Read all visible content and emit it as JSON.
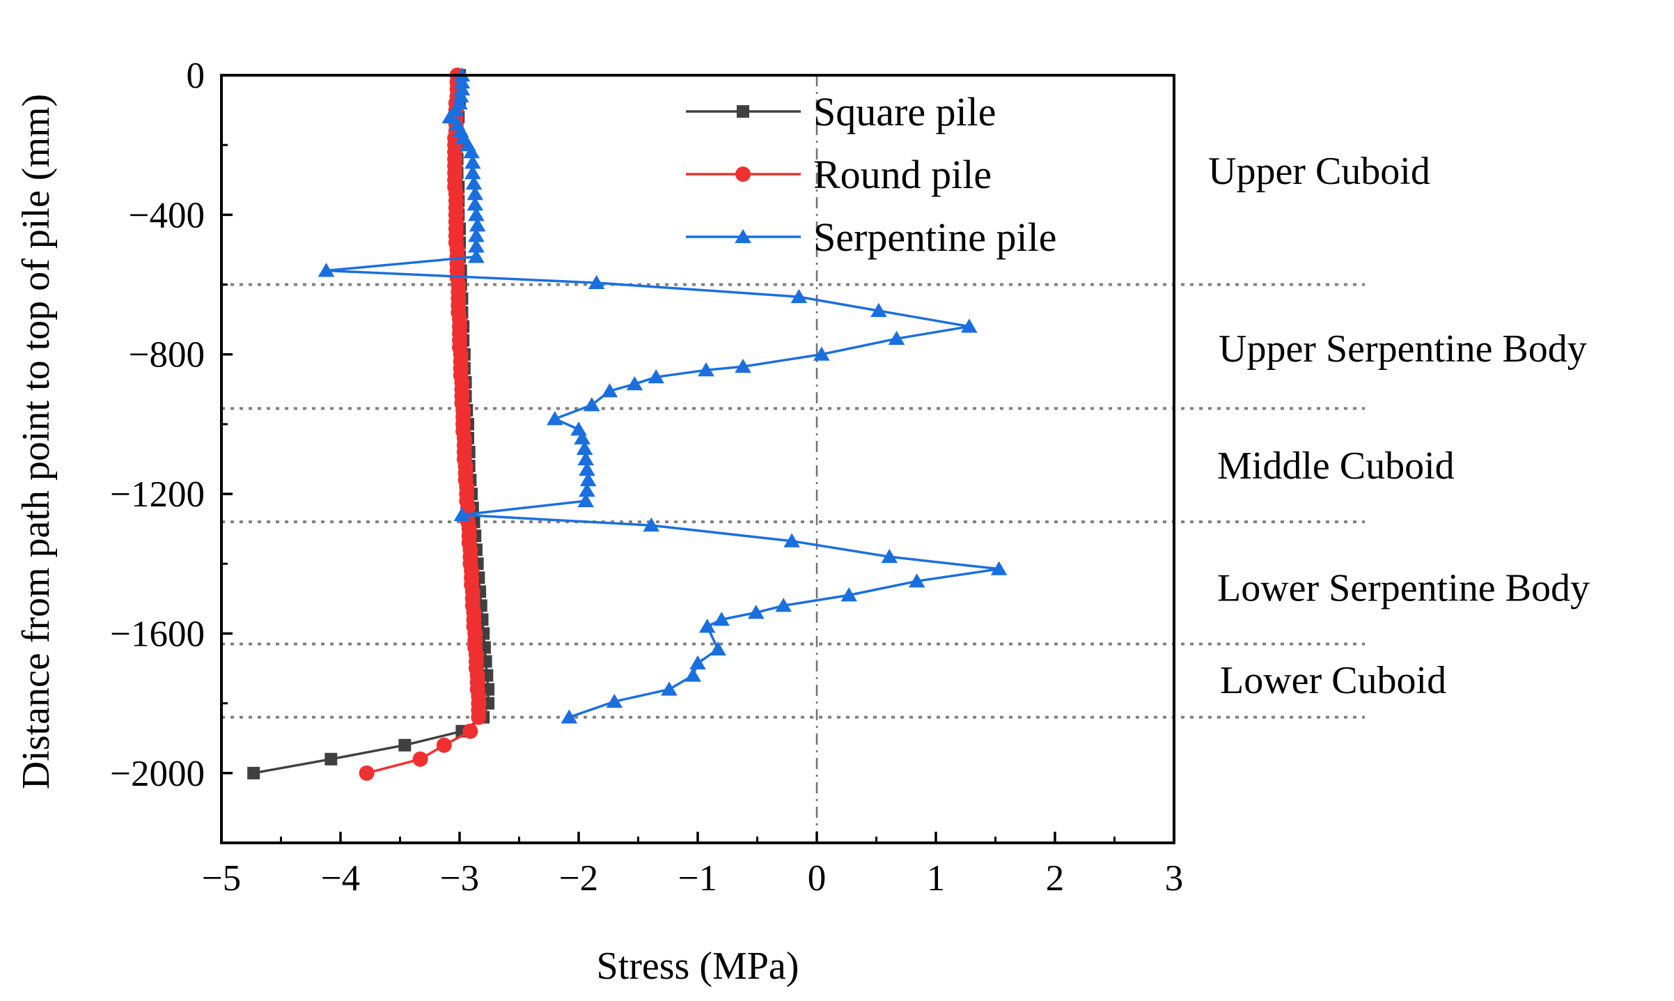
{
  "chart_data": {
    "type": "line",
    "title": "",
    "xlabel": "Stress (MPa)",
    "ylabel": "Distance from path point to top of pile (mm)",
    "xlim": [
      -5,
      3
    ],
    "ylim": [
      -2200,
      0
    ],
    "xticks": [
      -5,
      -4,
      -3,
      -2,
      -1,
      0,
      1,
      2,
      3
    ],
    "yticks": [
      0,
      -400,
      -800,
      -1200,
      -1600,
      -2000
    ],
    "xtick_labels": [
      "−5",
      "−4",
      "−3",
      "−2",
      "−1",
      "0",
      "1",
      "2",
      "3"
    ],
    "ytick_labels": [
      "0",
      "−400",
      "−800",
      "−1200",
      "−1600",
      "−2000"
    ],
    "grid": false,
    "legend_position": "top-center",
    "zero_line": {
      "x": 0,
      "style": "dash-dot"
    },
    "boundaries": [
      -600,
      -955,
      -1280,
      -1630,
      -1840
    ],
    "regions": [
      {
        "label": "Upper Cuboid",
        "y": -275
      },
      {
        "label": "Upper Serpentine Body",
        "y": -785
      },
      {
        "label": "Middle Cuboid",
        "y": -1120
      },
      {
        "label": "Lower Serpentine Body",
        "y": -1470
      },
      {
        "label": "Lower Cuboid",
        "y": -1735
      }
    ],
    "series": [
      {
        "name": "Square pile",
        "color": "#404040",
        "marker": "square",
        "points": [
          [
            -3.0,
            0
          ],
          [
            -3.0,
            -40
          ],
          [
            -3.0,
            -80
          ],
          [
            -3.01,
            -120
          ],
          [
            -3.02,
            -160
          ],
          [
            -3.02,
            -200
          ],
          [
            -3.02,
            -240
          ],
          [
            -3.02,
            -280
          ],
          [
            -3.01,
            -320
          ],
          [
            -3.01,
            -360
          ],
          [
            -3.01,
            -400
          ],
          [
            -3.0,
            -440
          ],
          [
            -3.0,
            -480
          ],
          [
            -3.0,
            -520
          ],
          [
            -2.99,
            -560
          ],
          [
            -2.99,
            -600
          ],
          [
            -2.98,
            -640
          ],
          [
            -2.98,
            -680
          ],
          [
            -2.97,
            -720
          ],
          [
            -2.97,
            -760
          ],
          [
            -2.96,
            -800
          ],
          [
            -2.96,
            -840
          ],
          [
            -2.95,
            -880
          ],
          [
            -2.95,
            -920
          ],
          [
            -2.94,
            -960
          ],
          [
            -2.93,
            -1000
          ],
          [
            -2.93,
            -1040
          ],
          [
            -2.92,
            -1080
          ],
          [
            -2.92,
            -1120
          ],
          [
            -2.91,
            -1160
          ],
          [
            -2.9,
            -1200
          ],
          [
            -2.89,
            -1240
          ],
          [
            -2.88,
            -1280
          ],
          [
            -2.87,
            -1320
          ],
          [
            -2.86,
            -1360
          ],
          [
            -2.85,
            -1400
          ],
          [
            -2.84,
            -1440
          ],
          [
            -2.83,
            -1480
          ],
          [
            -2.82,
            -1520
          ],
          [
            -2.81,
            -1560
          ],
          [
            -2.8,
            -1600
          ],
          [
            -2.79,
            -1640
          ],
          [
            -2.78,
            -1680
          ],
          [
            -2.77,
            -1720
          ],
          [
            -2.76,
            -1760
          ],
          [
            -2.76,
            -1800
          ],
          [
            -2.8,
            -1840
          ],
          [
            -2.98,
            -1880
          ],
          [
            -3.46,
            -1920
          ],
          [
            -4.08,
            -1960
          ],
          [
            -4.73,
            -2000
          ]
        ]
      },
      {
        "name": "Round pile",
        "color": "#f03030",
        "marker": "circle",
        "points": [
          [
            -3.02,
            0
          ],
          [
            -3.02,
            -20
          ],
          [
            -3.02,
            -40
          ],
          [
            -3.02,
            -60
          ],
          [
            -3.03,
            -80
          ],
          [
            -3.03,
            -100
          ],
          [
            -3.03,
            -120
          ],
          [
            -3.03,
            -140
          ],
          [
            -3.03,
            -160
          ],
          [
            -3.04,
            -180
          ],
          [
            -3.04,
            -200
          ],
          [
            -3.04,
            -220
          ],
          [
            -3.04,
            -240
          ],
          [
            -3.04,
            -260
          ],
          [
            -3.04,
            -280
          ],
          [
            -3.04,
            -300
          ],
          [
            -3.04,
            -320
          ],
          [
            -3.03,
            -340
          ],
          [
            -3.03,
            -360
          ],
          [
            -3.03,
            -380
          ],
          [
            -3.03,
            -400
          ],
          [
            -3.03,
            -420
          ],
          [
            -3.03,
            -440
          ],
          [
            -3.03,
            -460
          ],
          [
            -3.03,
            -480
          ],
          [
            -3.02,
            -500
          ],
          [
            -3.02,
            -520
          ],
          [
            -3.02,
            -540
          ],
          [
            -3.02,
            -560
          ],
          [
            -3.02,
            -580
          ],
          [
            -3.01,
            -600
          ],
          [
            -3.01,
            -620
          ],
          [
            -3.01,
            -640
          ],
          [
            -3.01,
            -660
          ],
          [
            -3.01,
            -680
          ],
          [
            -3.0,
            -700
          ],
          [
            -3.0,
            -720
          ],
          [
            -3.0,
            -740
          ],
          [
            -3.0,
            -760
          ],
          [
            -3.0,
            -780
          ],
          [
            -2.99,
            -800
          ],
          [
            -2.99,
            -820
          ],
          [
            -2.99,
            -840
          ],
          [
            -2.99,
            -860
          ],
          [
            -2.98,
            -880
          ],
          [
            -2.98,
            -900
          ],
          [
            -2.98,
            -920
          ],
          [
            -2.98,
            -940
          ],
          [
            -2.97,
            -960
          ],
          [
            -2.97,
            -980
          ],
          [
            -2.97,
            -1000
          ],
          [
            -2.97,
            -1020
          ],
          [
            -2.96,
            -1040
          ],
          [
            -2.96,
            -1060
          ],
          [
            -2.96,
            -1080
          ],
          [
            -2.96,
            -1100
          ],
          [
            -2.95,
            -1120
          ],
          [
            -2.95,
            -1140
          ],
          [
            -2.95,
            -1160
          ],
          [
            -2.94,
            -1180
          ],
          [
            -2.94,
            -1200
          ],
          [
            -2.94,
            -1220
          ],
          [
            -2.93,
            -1240
          ],
          [
            -2.93,
            -1260
          ],
          [
            -2.93,
            -1280
          ],
          [
            -2.92,
            -1300
          ],
          [
            -2.92,
            -1320
          ],
          [
            -2.92,
            -1340
          ],
          [
            -2.91,
            -1360
          ],
          [
            -2.91,
            -1380
          ],
          [
            -2.91,
            -1400
          ],
          [
            -2.9,
            -1420
          ],
          [
            -2.9,
            -1440
          ],
          [
            -2.9,
            -1460
          ],
          [
            -2.89,
            -1480
          ],
          [
            -2.89,
            -1500
          ],
          [
            -2.89,
            -1520
          ],
          [
            -2.88,
            -1540
          ],
          [
            -2.88,
            -1560
          ],
          [
            -2.88,
            -1580
          ],
          [
            -2.87,
            -1600
          ],
          [
            -2.87,
            -1620
          ],
          [
            -2.87,
            -1640
          ],
          [
            -2.86,
            -1660
          ],
          [
            -2.86,
            -1680
          ],
          [
            -2.86,
            -1700
          ],
          [
            -2.85,
            -1720
          ],
          [
            -2.85,
            -1740
          ],
          [
            -2.85,
            -1760
          ],
          [
            -2.84,
            -1780
          ],
          [
            -2.84,
            -1800
          ],
          [
            -2.84,
            -1820
          ],
          [
            -2.84,
            -1840
          ],
          [
            -2.91,
            -1880
          ],
          [
            -3.13,
            -1920
          ],
          [
            -3.33,
            -1960
          ],
          [
            -3.78,
            -2000
          ]
        ]
      },
      {
        "name": "Serpentine pile",
        "color": "#1a6fdf",
        "marker": "triangle",
        "points": [
          [
            -2.98,
            0
          ],
          [
            -2.98,
            -20
          ],
          [
            -2.98,
            -40
          ],
          [
            -2.99,
            -60
          ],
          [
            -3.0,
            -80
          ],
          [
            -3.03,
            -100
          ],
          [
            -3.08,
            -120
          ],
          [
            -3.02,
            -140
          ],
          [
            -2.99,
            -160
          ],
          [
            -2.97,
            -180
          ],
          [
            -2.93,
            -200
          ],
          [
            -2.9,
            -220
          ],
          [
            -2.89,
            -250
          ],
          [
            -2.89,
            -280
          ],
          [
            -2.88,
            -310
          ],
          [
            -2.87,
            -340
          ],
          [
            -2.87,
            -370
          ],
          [
            -2.86,
            -400
          ],
          [
            -2.85,
            -430
          ],
          [
            -2.86,
            -460
          ],
          [
            -2.86,
            -490
          ],
          [
            -2.86,
            -520
          ],
          [
            -4.12,
            -560
          ],
          [
            -1.85,
            -595
          ],
          [
            -0.15,
            -635
          ],
          [
            0.52,
            -675
          ],
          [
            1.28,
            -720
          ],
          [
            0.67,
            -755
          ],
          [
            0.04,
            -800
          ],
          [
            -0.62,
            -835
          ],
          [
            -0.93,
            -845
          ],
          [
            -1.35,
            -865
          ],
          [
            -1.53,
            -885
          ],
          [
            -1.74,
            -905
          ],
          [
            -1.89,
            -945
          ],
          [
            -2.2,
            -985
          ],
          [
            -2.0,
            -1015
          ],
          [
            -1.97,
            -1040
          ],
          [
            -1.95,
            -1070
          ],
          [
            -1.94,
            -1100
          ],
          [
            -1.93,
            -1130
          ],
          [
            -1.92,
            -1160
          ],
          [
            -1.93,
            -1190
          ],
          [
            -1.94,
            -1220
          ],
          [
            -2.98,
            -1260
          ],
          [
            -1.39,
            -1290
          ],
          [
            -0.21,
            -1335
          ],
          [
            0.61,
            -1380
          ],
          [
            1.53,
            -1415
          ],
          [
            0.84,
            -1450
          ],
          [
            0.27,
            -1490
          ],
          [
            -0.28,
            -1520
          ],
          [
            -0.51,
            -1540
          ],
          [
            -0.8,
            -1560
          ],
          [
            -0.92,
            -1580
          ],
          [
            -0.83,
            -1645
          ],
          [
            -1.0,
            -1685
          ],
          [
            -1.04,
            -1720
          ],
          [
            -1.24,
            -1760
          ],
          [
            -1.7,
            -1795
          ],
          [
            -2.08,
            -1840
          ]
        ]
      }
    ]
  }
}
